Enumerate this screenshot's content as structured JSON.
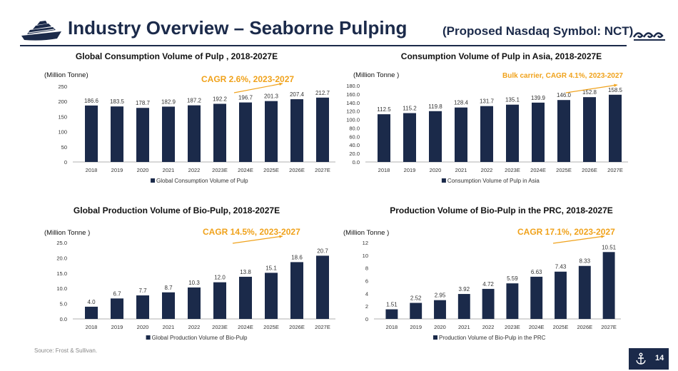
{
  "header": {
    "title": "Industry Overview – Seaborne Pulping",
    "subtitle": "(Proposed Nasdaq Symbol:  NCT)"
  },
  "footer": {
    "source": "Source: Frost & Sullivan.",
    "page": "14"
  },
  "icons": {
    "logo": "cruise-ship-icon",
    "decoration": "wave-icon",
    "page": "anchor-icon"
  },
  "colors": {
    "bar": "#1b2a4a",
    "cagr": "#f0a21b"
  },
  "chart_data": [
    {
      "type": "bar",
      "title": "Global Consumption Volume of Pulp , 2018-2027E",
      "unit": "(Million Tonne)",
      "cagr_label": "CAGR 2.6%, 2023-2027",
      "categories": [
        "2018",
        "2019",
        "2020",
        "2021",
        "2022",
        "2023E",
        "2024E",
        "2025E",
        "2026E",
        "2027E"
      ],
      "series": [
        {
          "name": "Global Consumption Volume of Pulp",
          "values": [
            186.6,
            183.5,
            178.7,
            182.9,
            187.2,
            192.2,
            196.7,
            201.3,
            207.4,
            212.7
          ]
        }
      ],
      "value_labels": [
        "186.6",
        "183.5",
        "178.7",
        "182.9",
        "187.2",
        "192.2",
        "196.7",
        "201.3",
        "207.4",
        "212.7"
      ],
      "yticks": [
        "0",
        "50",
        "100",
        "150",
        "200",
        "250"
      ],
      "ylim": [
        0,
        250
      ],
      "legend": "bottom"
    },
    {
      "type": "bar",
      "title": "Consumption Volume of Pulp in Asia, 2018-2027E",
      "unit": "(Million Tonne )",
      "cagr_label": "Bulk carrier, CAGR 4.1%, 2023-2027",
      "categories": [
        "2018",
        "2019",
        "2020",
        "2021",
        "2022",
        "2023E",
        "2024E",
        "2025E",
        "2026E",
        "2027E"
      ],
      "series": [
        {
          "name": "Consumption Volume of Pulp in Asia",
          "values": [
            112.5,
            115.2,
            119.8,
            128.4,
            131.7,
            135.1,
            139.9,
            146.0,
            152.8,
            158.5
          ]
        }
      ],
      "value_labels": [
        "112.5",
        "115.2",
        "119.8",
        "128.4",
        "131.7",
        "135.1",
        "139.9",
        "146.0",
        "152.8",
        "158.5"
      ],
      "yticks": [
        "0.0",
        "20.0",
        "40.0",
        "60.0",
        "80.0",
        "100.0",
        "120.0",
        "140.0",
        "160.0",
        "180.0"
      ],
      "ylim": [
        0,
        180
      ],
      "legend": "bottom"
    },
    {
      "type": "bar",
      "title": "Global Production Volume of Bio-Pulp, 2018-2027E",
      "unit": "(Million Tonne )",
      "cagr_label": "CAGR 14.5%, 2023-2027",
      "categories": [
        "2018",
        "2019",
        "2020",
        "2021",
        "2022",
        "2023E",
        "2024E",
        "2025E",
        "2026E",
        "2027E"
      ],
      "series": [
        {
          "name": "Global Production Volume of Bio-Pulp",
          "values": [
            4.0,
            6.7,
            7.7,
            8.7,
            10.3,
            12.0,
            13.8,
            15.1,
            18.6,
            20.7
          ]
        }
      ],
      "value_labels": [
        "4.0",
        "6.7",
        "7.7",
        "8.7",
        "10.3",
        "12.0",
        "13.8",
        "15.1",
        "18.6",
        "20.7"
      ],
      "yticks": [
        "0.0",
        "5.0",
        "10.0",
        "15.0",
        "20.0",
        "25.0"
      ],
      "ylim": [
        0,
        25
      ],
      "legend": "bottom"
    },
    {
      "type": "bar",
      "title": "Production Volume of Bio-Pulp in the PRC, 2018-2027E",
      "unit": "(Million Tonne )",
      "cagr_label": "CAGR 17.1%, 2023-2027",
      "categories": [
        "2018",
        "2019",
        "2020",
        "2021",
        "2022",
        "2023E",
        "2024E",
        "2025E",
        "2026E",
        "2027E"
      ],
      "series": [
        {
          "name": "Production Volume of Bio-Pulp in the PRC",
          "values": [
            1.51,
            2.52,
            2.95,
            3.92,
            4.72,
            5.59,
            6.63,
            7.43,
            8.33,
            10.51
          ]
        }
      ],
      "value_labels": [
        "1.51",
        "2.52",
        "2.95",
        "3.92",
        "4.72",
        "5.59",
        "6.63",
        "7.43",
        "8.33",
        "10.51"
      ],
      "yticks": [
        "0",
        "2",
        "4",
        "6",
        "8",
        "10",
        "12"
      ],
      "ylim": [
        0,
        12
      ],
      "legend": "bottom"
    }
  ]
}
